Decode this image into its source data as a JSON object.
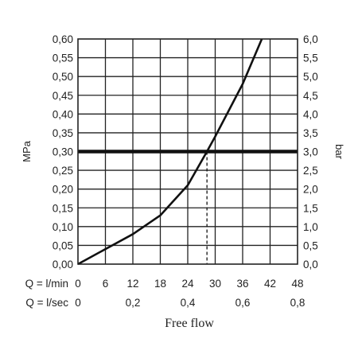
{
  "chart_data": {
    "type": "line",
    "title": "",
    "xlabel": "Free flow",
    "ylabel_left": "MPa",
    "ylabel_right": "bar",
    "grid": true,
    "legend": "none",
    "x_primary": {
      "label": "Q = l/min",
      "range": [
        0,
        48
      ],
      "ticks": [
        "0",
        "6",
        "12",
        "18",
        "24",
        "30",
        "36",
        "42",
        "48"
      ]
    },
    "x_secondary": {
      "label": "Q = l/sec",
      "range": [
        0,
        0.8
      ],
      "ticks": [
        "0",
        "0,2",
        "0,4",
        "0,6",
        "0,8"
      ]
    },
    "y_left": {
      "range": [
        0,
        0.6
      ],
      "ticks": [
        "0,00",
        "0,05",
        "0,10",
        "0,15",
        "0,20",
        "0,25",
        "0,30",
        "0,35",
        "0,40",
        "0,45",
        "0,50",
        "0,55",
        "0,60"
      ]
    },
    "y_right": {
      "range": [
        0,
        6
      ],
      "ticks": [
        "0,0",
        "0,5",
        "1,0",
        "1,5",
        "2,0",
        "2,5",
        "3,0",
        "3,5",
        "4,0",
        "4,5",
        "5,0",
        "5,5",
        "6,0"
      ]
    },
    "series": [
      {
        "x": [
          0,
          6,
          12,
          18,
          24,
          28.2,
          30,
          36,
          40.2
        ],
        "y": [
          0,
          0.04,
          0.08,
          0.13,
          0.21,
          0.3,
          0.34,
          0.48,
          0.6
        ]
      }
    ],
    "reference_line": {
      "y": 0.3
    },
    "marker": {
      "x": 28.2,
      "y": 0.3
    },
    "colors": {
      "curve": "#111111",
      "grid": "#222222",
      "reference": "#111111"
    }
  }
}
